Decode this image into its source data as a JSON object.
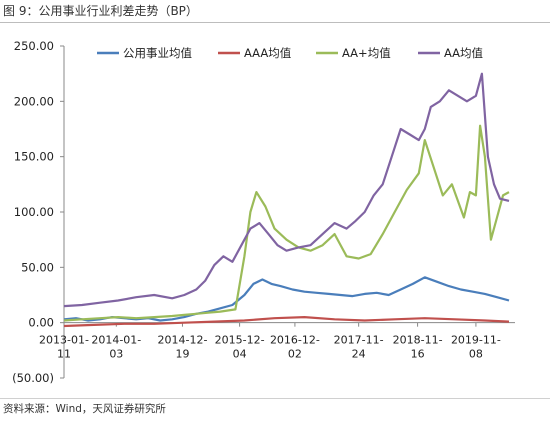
{
  "figure": {
    "title": "图 9：公用事业行业利差走势（BP）",
    "source": "资料来源：Wind，天风证券研究所"
  },
  "chart_data": {
    "type": "line",
    "ylim": [
      -50,
      250
    ],
    "yticks": [
      {
        "value": 250,
        "label": "250.00"
      },
      {
        "value": 200,
        "label": "200.00"
      },
      {
        "value": 150,
        "label": "150.00"
      },
      {
        "value": 100,
        "label": "100.00"
      },
      {
        "value": 50,
        "label": "50.00"
      },
      {
        "value": 0,
        "label": "0.00"
      },
      {
        "value": -50,
        "label": "(50.00)",
        "color": "#c0392b"
      }
    ],
    "xlim": [
      2013.0,
      2020.5
    ],
    "xticks": [
      {
        "value": 2013.0,
        "label": [
          "2013-01-",
          "11"
        ]
      },
      {
        "value": 2013.87,
        "label": [
          "2014-01-",
          "03"
        ]
      },
      {
        "value": 2014.97,
        "label": [
          "2014-12-",
          "19"
        ]
      },
      {
        "value": 2015.92,
        "label": [
          "2015-12-",
          "04"
        ]
      },
      {
        "value": 2016.84,
        "label": [
          "2016-12-",
          "02"
        ]
      },
      {
        "value": 2017.9,
        "label": [
          "2017-11-",
          "24"
        ]
      },
      {
        "value": 2018.88,
        "label": [
          "2018-11-",
          "16"
        ]
      },
      {
        "value": 2019.85,
        "label": [
          "2019-11-",
          "08"
        ]
      }
    ],
    "grid": false,
    "legend_position": "top",
    "series": [
      {
        "name": "公用事业均值",
        "color": "#4a7ebb",
        "x": [
          2013.0,
          2013.2,
          2013.4,
          2013.6,
          2013.8,
          2014.0,
          2014.2,
          2014.4,
          2014.6,
          2014.8,
          2015.0,
          2015.2,
          2015.4,
          2015.6,
          2015.8,
          2016.0,
          2016.15,
          2016.3,
          2016.45,
          2016.6,
          2016.8,
          2017.0,
          2017.2,
          2017.4,
          2017.6,
          2017.8,
          2018.0,
          2018.2,
          2018.4,
          2018.6,
          2018.8,
          2019.0,
          2019.2,
          2019.4,
          2019.6,
          2019.8,
          2020.0,
          2020.2,
          2020.4
        ],
        "y": [
          3,
          4,
          2,
          3,
          5,
          4,
          3,
          4,
          2,
          3,
          5,
          8,
          10,
          13,
          16,
          25,
          35,
          39,
          35,
          33,
          30,
          28,
          27,
          26,
          25,
          24,
          26,
          27,
          25,
          30,
          35,
          41,
          37,
          33,
          30,
          28,
          26,
          23,
          20
        ]
      },
      {
        "name": "AAA均值",
        "color": "#c0504d",
        "x": [
          2013.0,
          2013.5,
          2014.0,
          2014.5,
          2015.0,
          2015.5,
          2016.0,
          2016.5,
          2017.0,
          2017.5,
          2018.0,
          2018.5,
          2019.0,
          2019.5,
          2020.0,
          2020.4
        ],
        "y": [
          -3,
          -2,
          -1,
          -1,
          0,
          1,
          2,
          4,
          5,
          3,
          2,
          3,
          4,
          3,
          2,
          1
        ]
      },
      {
        "name": "AA+均值",
        "color": "#9bbb59",
        "x": [
          2013.0,
          2013.3,
          2013.6,
          2013.9,
          2014.2,
          2014.5,
          2014.8,
          2015.0,
          2015.2,
          2015.4,
          2015.6,
          2015.85,
          2016.0,
          2016.1,
          2016.2,
          2016.35,
          2016.5,
          2016.7,
          2016.9,
          2017.1,
          2017.3,
          2017.5,
          2017.7,
          2017.9,
          2018.1,
          2018.3,
          2018.5,
          2018.7,
          2018.9,
          2019.0,
          2019.15,
          2019.3,
          2019.45,
          2019.55,
          2019.65,
          2019.75,
          2019.85,
          2019.92,
          2020.0,
          2020.1,
          2020.2,
          2020.3,
          2020.4
        ],
        "y": [
          2,
          3,
          4,
          5,
          4,
          5,
          6,
          7,
          8,
          9,
          10,
          12,
          60,
          100,
          118,
          105,
          85,
          75,
          68,
          65,
          70,
          80,
          60,
          58,
          62,
          80,
          100,
          120,
          135,
          165,
          140,
          115,
          125,
          110,
          95,
          118,
          115,
          178,
          150,
          75,
          95,
          115,
          118
        ]
      },
      {
        "name": "AA均值",
        "color": "#8064a2",
        "x": [
          2013.0,
          2013.3,
          2013.6,
          2013.9,
          2014.2,
          2014.5,
          2014.8,
          2015.0,
          2015.2,
          2015.35,
          2015.5,
          2015.65,
          2015.8,
          2016.0,
          2016.1,
          2016.25,
          2016.4,
          2016.55,
          2016.7,
          2016.9,
          2017.1,
          2017.3,
          2017.5,
          2017.7,
          2017.85,
          2018.0,
          2018.15,
          2018.3,
          2018.45,
          2018.6,
          2018.75,
          2018.9,
          2019.0,
          2019.1,
          2019.25,
          2019.4,
          2019.55,
          2019.7,
          2019.85,
          2019.95,
          2020.05,
          2020.15,
          2020.25,
          2020.4
        ],
        "y": [
          15,
          16,
          18,
          20,
          23,
          25,
          22,
          25,
          30,
          38,
          52,
          60,
          55,
          75,
          85,
          90,
          80,
          70,
          65,
          68,
          70,
          80,
          90,
          85,
          92,
          100,
          115,
          125,
          150,
          175,
          170,
          165,
          175,
          195,
          200,
          210,
          205,
          200,
          205,
          225,
          150,
          125,
          112,
          110
        ]
      }
    ]
  }
}
